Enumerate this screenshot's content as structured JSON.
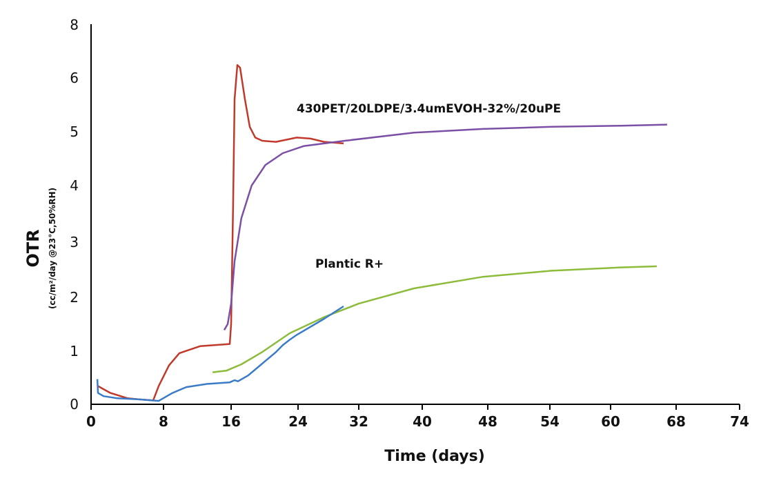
{
  "chart_data": {
    "type": "line",
    "title": "",
    "xlabel": "Time (days)",
    "ylabel": "OTR",
    "ylabel_sub": "(cc/m²/day @23°C,50%RH)",
    "x_ticks": [
      0,
      8,
      16,
      24,
      32,
      40,
      48,
      54,
      60,
      68,
      74
    ],
    "y_ticks": [
      0,
      1,
      2,
      3,
      4,
      5,
      6,
      8
    ],
    "grid": false,
    "annotations": [
      {
        "text": "430PET/20LDPE/3.4umEVOH-32%/20uPE",
        "x": 27,
        "y": 5.6
      },
      {
        "text": "Plantic R+",
        "x": 25,
        "y": 2.6
      }
    ],
    "series": [
      {
        "name": "red",
        "color": "#c0392b",
        "x": [
          0.76,
          2.13,
          4.04,
          5.18,
          6.86,
          7.47,
          8.65,
          9.88,
          12.33,
          15.84,
          16,
          16.24,
          16.41,
          16.74,
          17.07,
          17.65,
          18.23,
          18.89,
          19.71,
          21.36,
          23.84,
          25.64,
          27.45,
          30.0
        ],
        "y": [
          0.33,
          0.2,
          0.1,
          0.08,
          0.06,
          0.33,
          0.72,
          0.95,
          1.08,
          1.12,
          1.49,
          3.67,
          5.59,
          6.46,
          6.36,
          5.59,
          5.08,
          4.88,
          4.82,
          4.8,
          4.88,
          4.86,
          4.8,
          4.77
        ]
      },
      {
        "name": "purple",
        "color": "#7b4fa6",
        "x": [
          15.18,
          15.59,
          16,
          16.41,
          17.22,
          18.46,
          20.1,
          22.18,
          24.73,
          30.18,
          38.96,
          47.41,
          54.2,
          61.26,
          66.9
        ],
        "y": [
          1.38,
          1.49,
          1.87,
          2.64,
          3.41,
          3.99,
          4.37,
          4.59,
          4.72,
          4.82,
          4.97,
          5.04,
          5.08,
          5.1,
          5.12
        ]
      },
      {
        "name": "green",
        "color": "#8dbb3a",
        "x": [
          13.8,
          15.43,
          17.24,
          19.71,
          23.01,
          27.45,
          32,
          38.96,
          47.41,
          54.2,
          61.26,
          65.64
        ],
        "y": [
          0.59,
          0.62,
          0.74,
          0.97,
          1.32,
          1.62,
          1.87,
          2.15,
          2.36,
          2.47,
          2.53,
          2.55
        ]
      },
      {
        "name": "blue",
        "color": "#3a7bc8",
        "x": [
          0.69,
          0.76,
          1.37,
          2.9,
          5.18,
          7.47,
          9.06,
          10.69,
          13.14,
          15.84,
          16.41,
          16.82,
          18.04,
          21.36,
          22.18,
          23.01,
          23.84,
          27.45,
          30.0
        ],
        "y": [
          0.46,
          0.2,
          0.14,
          0.1,
          0.08,
          0.05,
          0.2,
          0.31,
          0.37,
          0.4,
          0.44,
          0.42,
          0.53,
          0.97,
          1.1,
          1.2,
          1.29,
          1.59,
          1.82
        ]
      }
    ]
  }
}
